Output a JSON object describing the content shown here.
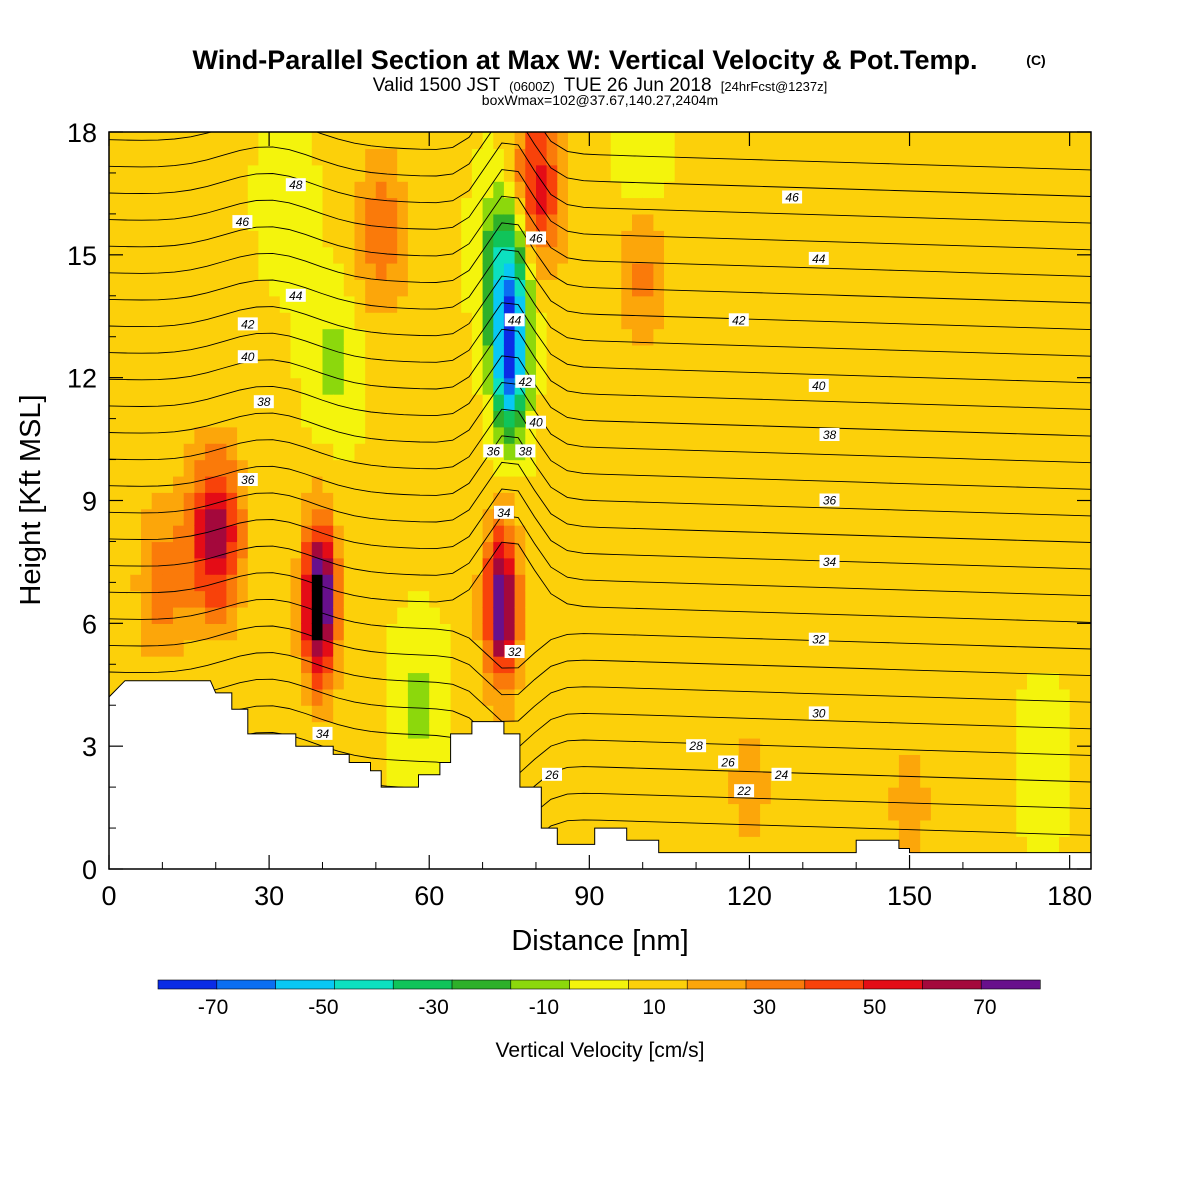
{
  "title": {
    "main": "Wind-Parallel Section at Max W: Vertical Velocity & Pot.Temp.",
    "copyright": "(C)",
    "valid_prefix": "Valid 1500 JST",
    "valid_utc": "(0600Z)",
    "valid_date": "TUE 26 Jun 2018",
    "forecast": "[24hrFcst@1237z]",
    "box": "boxWmax=102@37.67,140.27,2404m"
  },
  "colors": {
    "band_colors": [
      "#0a2ce6",
      "#0a6ef2",
      "#08c8f4",
      "#0ce0c0",
      "#10c45a",
      "#2eb02a",
      "#8cd80c",
      "#f4f40c",
      "#fcd00a",
      "#fca60a",
      "#fa7a0a",
      "#f8420a",
      "#e40c16",
      "#a4083c",
      "#68108c"
    ],
    "terrain": "#ffffff",
    "contour": "#000000"
  },
  "chart_data": {
    "type": "heatmap",
    "xlabel": "Distance [nm]",
    "ylabel": "Height [Kft MSL]",
    "xlim": [
      0,
      184
    ],
    "ylim": [
      0,
      18
    ],
    "x_ticks": [
      0,
      30,
      60,
      90,
      120,
      150,
      180
    ],
    "y_ticks": [
      0,
      3,
      6,
      9,
      12,
      15,
      18
    ],
    "colorbar": {
      "title": "Vertical Velocity [cm/s]",
      "levels": [
        -80,
        -70,
        -60,
        -50,
        -40,
        -30,
        -20,
        -10,
        0,
        10,
        20,
        30,
        40,
        50,
        60,
        70,
        80
      ],
      "labels": [
        "-70",
        "-50",
        "-30",
        "-10",
        "10",
        "30",
        "50",
        "70"
      ]
    },
    "w_features": [
      {
        "x": 20,
        "y": 8.2,
        "w_cm_s": 55
      },
      {
        "x": 39.5,
        "y": 6.5,
        "w_cm_s": 80
      },
      {
        "x": 73.5,
        "y": 6.5,
        "w_cm_s": 68
      },
      {
        "x": 80,
        "y": 16.5,
        "w_cm_s": 50
      },
      {
        "x": 51,
        "y": 15.5,
        "w_cm_s": 25
      },
      {
        "x": 100,
        "y": 15.0,
        "w_cm_s": 25
      },
      {
        "x": 75,
        "y": 12.5,
        "w_cm_s": -72
      },
      {
        "x": 75,
        "y": 15.0,
        "w_cm_s": -45
      },
      {
        "x": 42,
        "y": 12.5,
        "w_cm_s": -15
      },
      {
        "x": 58,
        "y": 4.0,
        "w_cm_s": -14
      },
      {
        "x": 100,
        "y": 17.0,
        "w_cm_s": -18
      },
      {
        "x": 33,
        "y": 16.5,
        "w_cm_s": -10
      },
      {
        "x": 10,
        "y": 7.0,
        "w_cm_s": 22
      },
      {
        "x": 120,
        "y": 2.0,
        "w_cm_s": 12
      },
      {
        "x": 150,
        "y": 1.5,
        "w_cm_s": 12
      },
      {
        "x": 175,
        "y": 2.5,
        "w_cm_s": -8
      }
    ],
    "theta_contour_labels": [
      {
        "text": "48",
        "x": 35,
        "y": 16.7
      },
      {
        "text": "46",
        "x": 25,
        "y": 15.8
      },
      {
        "text": "44",
        "x": 35,
        "y": 14.0
      },
      {
        "text": "42",
        "x": 26,
        "y": 13.3
      },
      {
        "text": "40",
        "x": 26,
        "y": 12.5
      },
      {
        "text": "38",
        "x": 29,
        "y": 11.4
      },
      {
        "text": "36",
        "x": 26,
        "y": 9.5
      },
      {
        "text": "34",
        "x": 40,
        "y": 3.3
      },
      {
        "text": "36",
        "x": 72,
        "y": 10.2
      },
      {
        "text": "38",
        "x": 78,
        "y": 10.2
      },
      {
        "text": "40",
        "x": 80,
        "y": 10.9
      },
      {
        "text": "42",
        "x": 78,
        "y": 11.9
      },
      {
        "text": "44",
        "x": 76,
        "y": 13.4
      },
      {
        "text": "46",
        "x": 80,
        "y": 15.4
      },
      {
        "text": "34",
        "x": 74,
        "y": 8.7
      },
      {
        "text": "32",
        "x": 76,
        "y": 5.3
      },
      {
        "text": "26",
        "x": 83,
        "y": 2.3
      },
      {
        "text": "46",
        "x": 128,
        "y": 16.4
      },
      {
        "text": "44",
        "x": 133,
        "y": 14.9
      },
      {
        "text": "42",
        "x": 118,
        "y": 13.4
      },
      {
        "text": "40",
        "x": 133,
        "y": 11.8
      },
      {
        "text": "38",
        "x": 135,
        "y": 10.6
      },
      {
        "text": "36",
        "x": 135,
        "y": 9.0
      },
      {
        "text": "34",
        "x": 135,
        "y": 7.5
      },
      {
        "text": "32",
        "x": 133,
        "y": 5.6
      },
      {
        "text": "30",
        "x": 133,
        "y": 3.8
      },
      {
        "text": "28",
        "x": 110,
        "y": 3.0
      },
      {
        "text": "26",
        "x": 116,
        "y": 2.6
      },
      {
        "text": "24",
        "x": 126,
        "y": 2.3
      },
      {
        "text": "22",
        "x": 119,
        "y": 1.9
      }
    ],
    "terrain_profile": [
      [
        0,
        4.2
      ],
      [
        3,
        4.6
      ],
      [
        19,
        4.6
      ],
      [
        20,
        4.3
      ],
      [
        23,
        4.3
      ],
      [
        23,
        3.9
      ],
      [
        26,
        3.9
      ],
      [
        26,
        3.3
      ],
      [
        35,
        3.3
      ],
      [
        35,
        3.0
      ],
      [
        42,
        3.0
      ],
      [
        42,
        2.8
      ],
      [
        45,
        2.8
      ],
      [
        45,
        2.6
      ],
      [
        49,
        2.6
      ],
      [
        49,
        2.4
      ],
      [
        51,
        2.4
      ],
      [
        51,
        2.0
      ],
      [
        58,
        2.0
      ],
      [
        58,
        2.3
      ],
      [
        62,
        2.3
      ],
      [
        62,
        2.6
      ],
      [
        64,
        2.6
      ],
      [
        64,
        3.3
      ],
      [
        68,
        3.3
      ],
      [
        68,
        3.6
      ],
      [
        74,
        3.6
      ],
      [
        74,
        3.3
      ],
      [
        77,
        3.3
      ],
      [
        77,
        2.0
      ],
      [
        81,
        2.0
      ],
      [
        81,
        1.0
      ],
      [
        84,
        1.0
      ],
      [
        84,
        0.6
      ],
      [
        91,
        0.6
      ],
      [
        91,
        1.0
      ],
      [
        97,
        1.0
      ],
      [
        97,
        0.7
      ],
      [
        103,
        0.7
      ],
      [
        103,
        0.4
      ],
      [
        140,
        0.4
      ],
      [
        140,
        0.7
      ],
      [
        148,
        0.7
      ],
      [
        148,
        0.5
      ],
      [
        150,
        0.5
      ],
      [
        150,
        0.4
      ],
      [
        184,
        0.4
      ]
    ]
  }
}
